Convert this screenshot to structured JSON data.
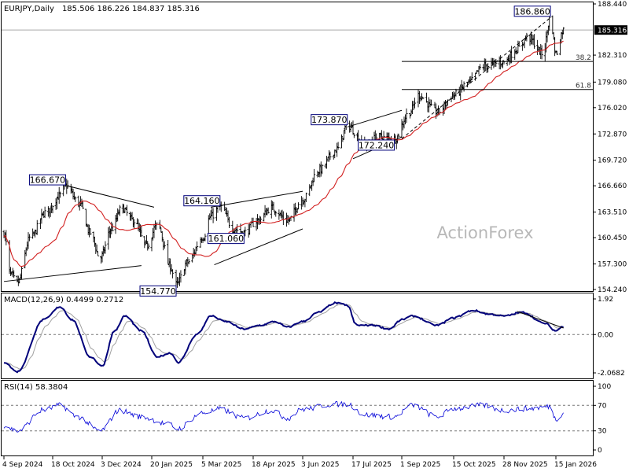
{
  "header": {
    "symbol": "EURJPY,Daily",
    "ohlc": "185.506 186.226 184.837 185.316"
  },
  "watermark": "ActionForex",
  "colors": {
    "price_bar": "#000000",
    "ma": "#d22020",
    "macd": "#00007a",
    "signal": "#a0a0a0",
    "rsi": "#0000d8",
    "trendline": "#000000",
    "label_border": "#00007a"
  },
  "chart_data": [
    {
      "type": "candlestick",
      "title": "EURJPY,Daily",
      "ohlc_text": "185.506 186.226 184.837 185.316",
      "ylim": [
        154.24,
        188.44
      ],
      "y_ticks": [
        188.44,
        185.316,
        182.31,
        179.08,
        176.02,
        172.87,
        169.72,
        166.66,
        163.51,
        160.45,
        157.3,
        154.24
      ],
      "current_price": "185.316",
      "x_ticks": [
        "4 Sep 2024",
        "18 Oct 2024",
        "3 Dec 2024",
        "20 Jan 2025",
        "5 Mar 2025",
        "18 Apr 2025",
        "3 Jun 2025",
        "17 Jul 2025",
        "1 Sep 2025",
        "15 Oct 2025",
        "28 Nov 2025",
        "15 Jan 2026"
      ],
      "anchors": [
        {
          "date": "4 Sep 2024",
          "close": 161.0
        },
        {
          "date": "10 Sep 2024",
          "close": 156.0
        },
        {
          "date": "16 Sep 2024",
          "close": 155.0
        },
        {
          "date": "28 Sep 2024",
          "close": 160.5
        },
        {
          "date": "12 Oct 2024",
          "close": 163.5
        },
        {
          "date": "25 Oct 2024",
          "close": 165.5
        },
        {
          "date": "30 Oct 2024",
          "close": 166.67
        },
        {
          "date": "12 Nov 2024",
          "close": 164.5
        },
        {
          "date": "22 Nov 2024",
          "close": 161.0
        },
        {
          "date": "1 Dec 2024",
          "close": 158.0
        },
        {
          "date": "12 Dec 2024",
          "close": 161.5
        },
        {
          "date": "22 Dec 2024",
          "close": 164.0
        },
        {
          "date": "2 Jan 2025",
          "close": 162.5
        },
        {
          "date": "15 Jan 2025",
          "close": 159.5
        },
        {
          "date": "25 Jan 2025",
          "close": 162.0
        },
        {
          "date": "5 Feb 2025",
          "close": 157.0
        },
        {
          "date": "10 Feb 2025",
          "close": 154.77
        },
        {
          "date": "20 Feb 2025",
          "close": 157.5
        },
        {
          "date": "5 Mar 2025",
          "close": 160.5
        },
        {
          "date": "12 Mar 2025",
          "close": 163.0
        },
        {
          "date": "20 Mar 2025",
          "close": 164.16
        },
        {
          "date": "1 Apr 2025",
          "close": 161.5
        },
        {
          "date": "10 Apr 2025",
          "close": 161.06
        },
        {
          "date": "22 Apr 2025",
          "close": 162.5
        },
        {
          "date": "5 May 2025",
          "close": 164.0
        },
        {
          "date": "20 May 2025",
          "close": 162.5
        },
        {
          "date": "3 Jun 2025",
          "close": 165.0
        },
        {
          "date": "17 Jun 2025",
          "close": 168.5
        },
        {
          "date": "3 Jul 2025",
          "close": 171.0
        },
        {
          "date": "12 Jul 2025",
          "close": 173.87
        },
        {
          "date": "28 Jul 2025",
          "close": 171.5
        },
        {
          "date": "10 Aug 2025",
          "close": 172.5
        },
        {
          "date": "25 Aug 2025",
          "close": 172.24
        },
        {
          "date": "8 Sep 2025",
          "close": 175.5
        },
        {
          "date": "15 Sep 2025",
          "close": 177.5
        },
        {
          "date": "1 Oct 2025",
          "close": 175.5
        },
        {
          "date": "15 Oct 2025",
          "close": 177.5
        },
        {
          "date": "28 Oct 2025",
          "close": 179.0
        },
        {
          "date": "10 Nov 2025",
          "close": 181.0
        },
        {
          "date": "28 Nov 2025",
          "close": 181.5
        },
        {
          "date": "10 Dec 2025",
          "close": 183.0
        },
        {
          "date": "20 Dec 2025",
          "close": 184.5
        },
        {
          "date": "3 Jan 2026",
          "close": 182.5
        },
        {
          "date": "10 Jan 2026",
          "close": 186.86
        },
        {
          "date": "15 Jan 2026",
          "close": 182.5
        },
        {
          "date": "22 Jan 2026",
          "close": 185.316
        }
      ],
      "swing_labels": [
        {
          "text": "166.670",
          "date": "30 Oct 2024",
          "price": 166.67
        },
        {
          "text": "154.770",
          "date": "10 Feb 2025",
          "price": 154.77
        },
        {
          "text": "164.160",
          "date": "20 Mar 2025",
          "price": 164.16
        },
        {
          "text": "161.060",
          "date": "10 Apr 2025",
          "price": 161.06
        },
        {
          "text": "173.870",
          "date": "12 Jul 2025",
          "price": 173.87
        },
        {
          "text": "172.240",
          "date": "25 Aug 2025",
          "price": 172.24
        },
        {
          "text": "186.860",
          "date": "10 Jan 2026",
          "price": 186.86
        }
      ],
      "fibonacci": [
        {
          "text": "38.2",
          "price": 181.55
        },
        {
          "text": "61.8",
          "price": 178.2
        }
      ],
      "trendlines": [
        {
          "p1": {
            "date": "4 Sep 2024",
            "price": 155.2
          },
          "p2": {
            "date": "10 Jan 2025",
            "price": 157.1
          }
        },
        {
          "p1": {
            "date": "30 Oct 2024",
            "price": 166.7
          },
          "p2": {
            "date": "22 Jan 2025",
            "price": 164.1
          }
        },
        {
          "p1": {
            "date": "12 Mar 2025",
            "price": 164.1
          },
          "p2": {
            "date": "3 Jun 2025",
            "price": 166.0
          }
        },
        {
          "p1": {
            "date": "15 Mar 2025",
            "price": 157.2
          },
          "p2": {
            "date": "3 Jun 2025",
            "price": 161.5
          }
        },
        {
          "p1": {
            "date": "12 Jul 2025",
            "price": 173.7
          },
          "p2": {
            "date": "1 Sep 2025",
            "price": 175.7
          }
        },
        {
          "p1": {
            "date": "17 Jul 2025",
            "price": 169.9
          },
          "p2": {
            "date": "1 Sep 2025",
            "price": 172.5
          }
        },
        {
          "p1": {
            "date": "1 Sep 2025",
            "price": 172.3
          },
          "p2": {
            "date": "10 Jan 2026",
            "price": 186.8
          },
          "dashed": true
        }
      ]
    },
    {
      "type": "line",
      "title": "MACD(12,26,9) 0.4499 0.2712",
      "ylim": [
        -2.0682,
        1.92
      ],
      "y_ticks": [
        1.92,
        0.0,
        -2.0682
      ],
      "y_tick_labels": [
        "1.92",
        "0.00",
        "-2.0682"
      ],
      "anchors": [
        {
          "date": "4 Sep 2024",
          "v": -1.5
        },
        {
          "date": "16 Sep 2024",
          "v": -2.0
        },
        {
          "date": "10 Oct 2024",
          "v": 0.8
        },
        {
          "date": "25 Oct 2024",
          "v": 1.5
        },
        {
          "date": "5 Nov 2024",
          "v": 0.8
        },
        {
          "date": "22 Nov 2024",
          "v": -1.2
        },
        {
          "date": "3 Dec 2024",
          "v": -1.7
        },
        {
          "date": "15 Dec 2024",
          "v": 0.2
        },
        {
          "date": "25 Dec 2024",
          "v": 1.0
        },
        {
          "date": "10 Jan 2025",
          "v": 0.2
        },
        {
          "date": "25 Jan 2025",
          "v": -1.2
        },
        {
          "date": "5 Feb 2025",
          "v": -1.0
        },
        {
          "date": "12 Feb 2025",
          "v": -1.5
        },
        {
          "date": "28 Feb 2025",
          "v": 0.0
        },
        {
          "date": "12 Mar 2025",
          "v": 1.0
        },
        {
          "date": "25 Mar 2025",
          "v": 0.7
        },
        {
          "date": "10 Apr 2025",
          "v": 0.3
        },
        {
          "date": "25 Apr 2025",
          "v": 0.5
        },
        {
          "date": "8 May 2025",
          "v": 0.7
        },
        {
          "date": "20 May 2025",
          "v": 0.4
        },
        {
          "date": "3 Jun 2025",
          "v": 0.7
        },
        {
          "date": "17 Jun 2025",
          "v": 1.2
        },
        {
          "date": "1 Jul 2025",
          "v": 1.7
        },
        {
          "date": "12 Jul 2025",
          "v": 1.6
        },
        {
          "date": "20 Jul 2025",
          "v": 0.5
        },
        {
          "date": "5 Aug 2025",
          "v": 0.5
        },
        {
          "date": "20 Aug 2025",
          "v": 0.3
        },
        {
          "date": "1 Sep 2025",
          "v": 0.8
        },
        {
          "date": "10 Sep 2025",
          "v": 1.0
        },
        {
          "date": "1 Oct 2025",
          "v": 0.5
        },
        {
          "date": "15 Oct 2025",
          "v": 0.9
        },
        {
          "date": "1 Nov 2025",
          "v": 1.3
        },
        {
          "date": "15 Nov 2025",
          "v": 1.1
        },
        {
          "date": "28 Nov 2025",
          "v": 1.0
        },
        {
          "date": "15 Dec 2025",
          "v": 1.2
        },
        {
          "date": "5 Jan 2026",
          "v": 0.6
        },
        {
          "date": "15 Jan 2026",
          "v": 0.2
        },
        {
          "date": "22 Jan 2026",
          "v": 0.45
        }
      ],
      "trendline": {
        "p1": {
          "date": "10 Dec 2025",
          "v": 1.25
        },
        "p2": {
          "date": "22 Jan 2026",
          "v": 0.35
        }
      }
    },
    {
      "type": "line",
      "title": "RSI(14) 58.3804",
      "ylim": [
        0,
        100
      ],
      "y_ticks": [
        100,
        70,
        30,
        0
      ],
      "anchors": [
        {
          "date": "4 Sep 2024",
          "v": 38
        },
        {
          "date": "16 Sep 2024",
          "v": 30
        },
        {
          "date": "10 Oct 2024",
          "v": 63
        },
        {
          "date": "25 Oct 2024",
          "v": 70
        },
        {
          "date": "10 Nov 2024",
          "v": 52
        },
        {
          "date": "1 Dec 2024",
          "v": 30
        },
        {
          "date": "20 Dec 2024",
          "v": 62
        },
        {
          "date": "10 Jan 2025",
          "v": 52
        },
        {
          "date": "5 Feb 2025",
          "v": 40
        },
        {
          "date": "10 Feb 2025",
          "v": 33
        },
        {
          "date": "5 Mar 2025",
          "v": 58
        },
        {
          "date": "20 Mar 2025",
          "v": 64
        },
        {
          "date": "10 Apr 2025",
          "v": 50
        },
        {
          "date": "5 May 2025",
          "v": 62
        },
        {
          "date": "20 May 2025",
          "v": 50
        },
        {
          "date": "3 Jun 2025",
          "v": 64
        },
        {
          "date": "1 Jul 2025",
          "v": 72
        },
        {
          "date": "12 Jul 2025",
          "v": 72
        },
        {
          "date": "28 Jul 2025",
          "v": 55
        },
        {
          "date": "25 Aug 2025",
          "v": 52
        },
        {
          "date": "10 Sep 2025",
          "v": 70
        },
        {
          "date": "1 Oct 2025",
          "v": 52
        },
        {
          "date": "15 Oct 2025",
          "v": 65
        },
        {
          "date": "10 Nov 2025",
          "v": 70
        },
        {
          "date": "28 Nov 2025",
          "v": 62
        },
        {
          "date": "20 Dec 2025",
          "v": 65
        },
        {
          "date": "10 Jan 2026",
          "v": 68
        },
        {
          "date": "15 Jan 2026",
          "v": 48
        },
        {
          "date": "22 Jan 2026",
          "v": 58.38
        }
      ]
    }
  ]
}
